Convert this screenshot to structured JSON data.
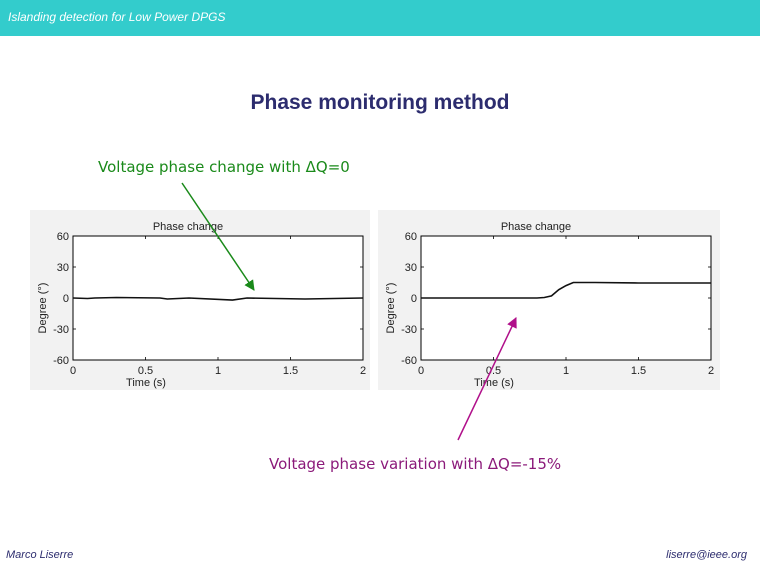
{
  "header": {
    "title": "Islanding detection for Low Power DPGS"
  },
  "slide": {
    "title": "Phase monitoring method",
    "caption_top": "Voltage phase change with ΔQ=0",
    "caption_bottom": "Voltage phase variation with ΔQ=-15%"
  },
  "footer": {
    "author": "Marco Liserre",
    "email": "liserre@ieee.org"
  },
  "colors": {
    "header": "#33cccc",
    "title": "#2c2c6e",
    "arrow_top": "#1a8a1a",
    "arrow_bottom": "#b0108a"
  },
  "chart_data": [
    {
      "type": "line",
      "title": "Phase change",
      "xlabel": "Time (s)",
      "ylabel": "Degree (°)",
      "xlim": [
        0,
        2
      ],
      "ylim": [
        -60,
        60
      ],
      "xticks": [
        "0",
        "0.5",
        "1",
        "1.5",
        "2"
      ],
      "yticks": [
        "60",
        "30",
        "0",
        "-30",
        "-60"
      ],
      "x": [
        0,
        0.1,
        0.15,
        0.3,
        0.6,
        0.65,
        0.8,
        1.1,
        1.2,
        1.6,
        2.0
      ],
      "y": [
        0,
        -0.5,
        0,
        0.5,
        0,
        -1,
        0,
        -2,
        0,
        -1,
        0
      ]
    },
    {
      "type": "line",
      "title": "Phase change",
      "xlabel": "Time (s)",
      "ylabel": "Degree (°)",
      "xlim": [
        0,
        2
      ],
      "ylim": [
        -60,
        60
      ],
      "xticks": [
        "0",
        "0.5",
        "1",
        "1.5",
        "2"
      ],
      "yticks": [
        "60",
        "30",
        "0",
        "-30",
        "-60"
      ],
      "x": [
        0,
        0.7,
        0.8,
        0.85,
        0.9,
        0.95,
        1.0,
        1.05,
        1.2,
        1.5,
        2.0
      ],
      "y": [
        0,
        0,
        0,
        0.5,
        2,
        8,
        12,
        15,
        15,
        14.5,
        14.5
      ]
    }
  ]
}
